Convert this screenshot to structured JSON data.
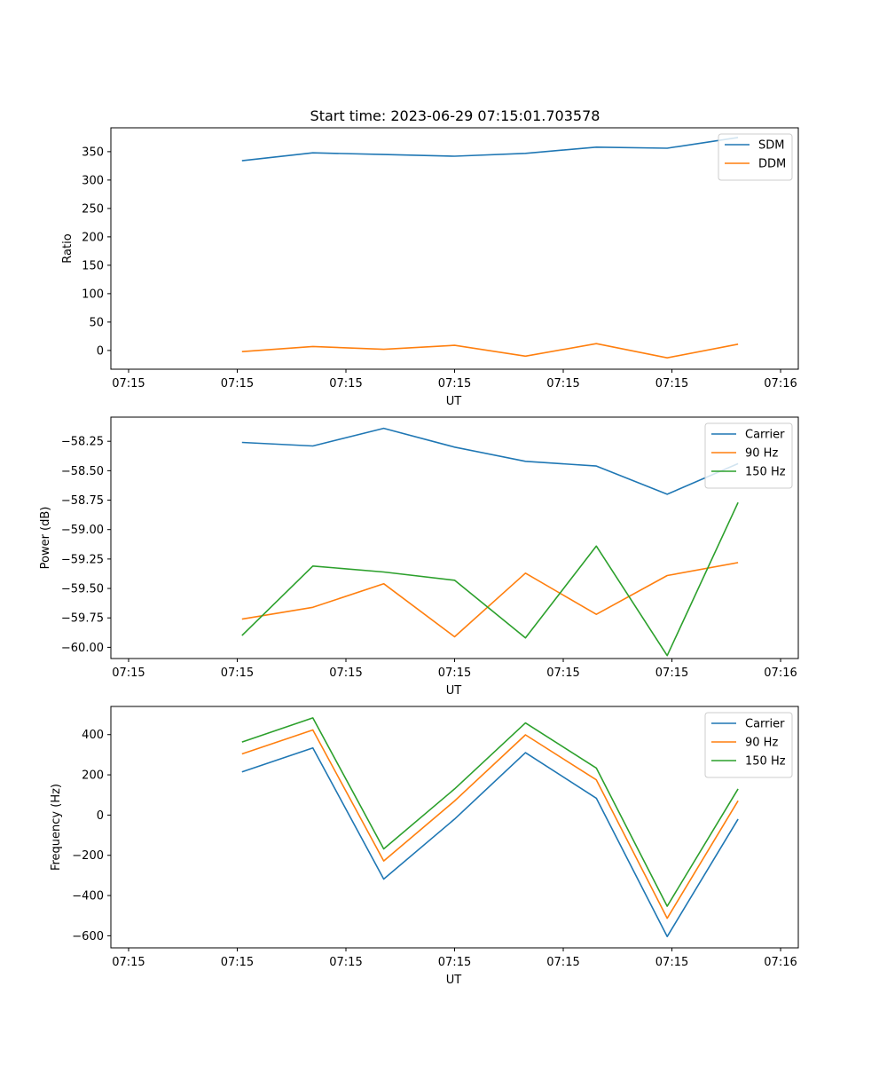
{
  "figure": {
    "title": "Start time: 2023-06-29 07:15:01.703578"
  },
  "chart_data": [
    {
      "type": "line",
      "title": "Start time: 2023-06-29 07:15:01.703578",
      "xlabel": "UT",
      "ylabel": "Ratio",
      "x": [
        1.0,
        2.0,
        3.0,
        4.0,
        5.0,
        6.0,
        7.0,
        8.0
      ],
      "xlim": [
        -0.85,
        8.85
      ],
      "xticks": [
        -0.6,
        1.7,
        4.0,
        6.3,
        8.6
      ],
      "xtick_labels": [
        "07:15",
        "07:15",
        "07:15",
        "07:15",
        "07:15",
        "07:15",
        "07:16"
      ],
      "xticks_all": [
        -0.6,
        0.9333,
        2.4667,
        4.0,
        5.5333,
        7.0667,
        8.6
      ],
      "ylim": [
        -33,
        392
      ],
      "yticks": [
        0,
        50,
        100,
        150,
        200,
        250,
        300,
        350
      ],
      "ytick_labels": [
        "0",
        "50",
        "100",
        "150",
        "200",
        "250",
        "300",
        "350"
      ],
      "legend": "top-right",
      "grid": false,
      "series": [
        {
          "name": "SDM",
          "color": "#1f77b4",
          "values": [
            334,
            348,
            345,
            342,
            347,
            358,
            356,
            375
          ]
        },
        {
          "name": "DDM",
          "color": "#ff7f0e",
          "values": [
            -2,
            7,
            2,
            9,
            -10,
            12,
            -13,
            11
          ]
        }
      ]
    },
    {
      "type": "line",
      "title": "",
      "xlabel": "UT",
      "ylabel": "Power (dB)",
      "x": [
        1.0,
        2.0,
        3.0,
        4.0,
        5.0,
        6.0,
        7.0,
        8.0
      ],
      "xlim": [
        -0.85,
        8.85
      ],
      "xtick_labels": [
        "07:15",
        "07:15",
        "07:15",
        "07:15",
        "07:15",
        "07:15",
        "07:16"
      ],
      "xticks_all": [
        -0.6,
        0.9333,
        2.4667,
        4.0,
        5.5333,
        7.0667,
        8.6
      ],
      "ylim": [
        -60.095,
        -58.045
      ],
      "yticks": [
        -60.0,
        -59.75,
        -59.5,
        -59.25,
        -59.0,
        -58.75,
        -58.5,
        -58.25
      ],
      "ytick_labels": [
        "−60.00",
        "−59.75",
        "−59.50",
        "−59.25",
        "−59.00",
        "−58.75",
        "−58.50",
        "−58.25"
      ],
      "legend": "top-right",
      "grid": false,
      "series": [
        {
          "name": "Carrier",
          "color": "#1f77b4",
          "values": [
            -58.26,
            -58.29,
            -58.14,
            -58.3,
            -58.42,
            -58.46,
            -58.7,
            -58.44
          ]
        },
        {
          "name": "90 Hz",
          "color": "#ff7f0e",
          "values": [
            -59.76,
            -59.66,
            -59.46,
            -59.91,
            -59.37,
            -59.72,
            -59.39,
            -59.28
          ]
        },
        {
          "name": "150 Hz",
          "color": "#2ca02c",
          "values": [
            -59.9,
            -59.31,
            -59.36,
            -59.43,
            -59.92,
            -59.14,
            -60.07,
            -58.77
          ]
        }
      ]
    },
    {
      "type": "line",
      "title": "",
      "xlabel": "UT",
      "ylabel": "Frequency (Hz)",
      "x": [
        1.0,
        2.0,
        3.0,
        4.0,
        5.0,
        6.0,
        7.0,
        8.0
      ],
      "xlim": [
        -0.85,
        8.85
      ],
      "xtick_labels": [
        "07:15",
        "07:15",
        "07:15",
        "07:15",
        "07:15",
        "07:15",
        "07:16"
      ],
      "xticks_all": [
        -0.6,
        0.9333,
        2.4667,
        4.0,
        5.5333,
        7.0667,
        8.6
      ],
      "ylim": [
        -660,
        540
      ],
      "yticks": [
        -600,
        -400,
        -200,
        0,
        200,
        400
      ],
      "ytick_labels": [
        "−600",
        "−400",
        "−200",
        "0",
        "200",
        "400"
      ],
      "legend": "top-right",
      "grid": false,
      "series": [
        {
          "name": "Carrier",
          "color": "#1f77b4",
          "values": [
            215,
            334,
            -318,
            -20,
            310,
            84,
            -604,
            -20
          ]
        },
        {
          "name": "90 Hz",
          "color": "#ff7f0e",
          "values": [
            304,
            423,
            -228,
            70,
            399,
            175,
            -513,
            71
          ]
        },
        {
          "name": "150 Hz",
          "color": "#2ca02c",
          "values": [
            363,
            483,
            -168,
            130,
            458,
            234,
            -453,
            130
          ]
        }
      ]
    }
  ]
}
